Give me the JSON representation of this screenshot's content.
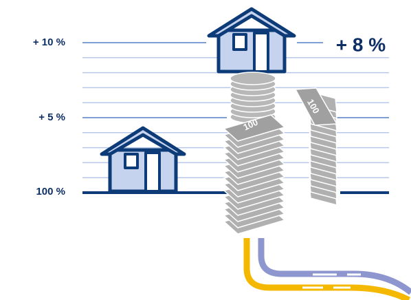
{
  "axis": {
    "labels": [
      "+ 10 %",
      "+ 5 %",
      "100 %"
    ]
  },
  "callout": "+ 8 %",
  "banknote_label": "100"
}
